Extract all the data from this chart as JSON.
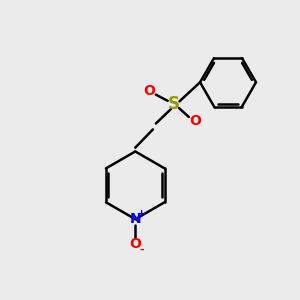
{
  "background_color": "#ebebeb",
  "bond_color": "#000000",
  "bond_width": 1.8,
  "S_color": "#999900",
  "O_color": "#ff0000",
  "N_color": "#0000ff",
  "figsize": [
    3.0,
    3.0
  ],
  "dpi": 100,
  "xlim": [
    0,
    10
  ],
  "ylim": [
    0,
    10
  ]
}
